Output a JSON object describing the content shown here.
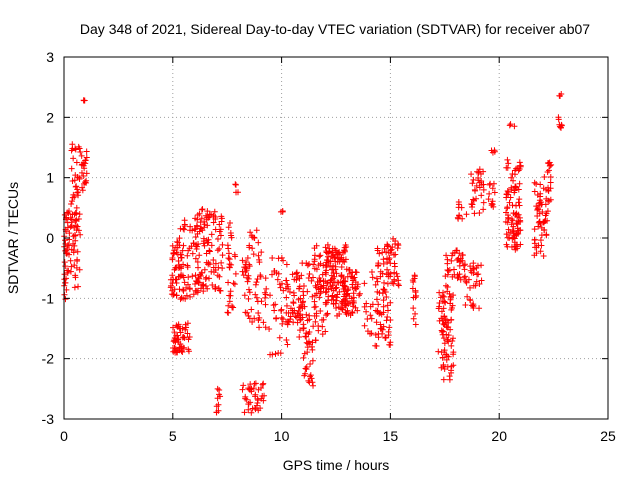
{
  "chart_data": {
    "type": "scatter",
    "title": "Day 348 of 2021, Sidereal Day-to-day VTEC variation (SDTVAR) for receiver ab07",
    "xlabel": "GPS time / hours",
    "ylabel": "SDTVAR / TECUs",
    "xlim": [
      0,
      25
    ],
    "ylim": [
      -3,
      3
    ],
    "xticks": [
      0,
      5,
      10,
      15,
      20,
      25
    ],
    "yticks": [
      -3,
      -2,
      -1,
      0,
      1,
      2,
      3
    ],
    "xtick_labels": [
      "0",
      "5",
      "10",
      "15",
      "20",
      "25"
    ],
    "ytick_labels": [
      "-3",
      "-2",
      "-1",
      "0",
      "1",
      "2",
      "3"
    ],
    "grid": true,
    "marker": "+",
    "color": "#ff0000",
    "clusters": [
      {
        "x0": 0.0,
        "x1": 0.25,
        "y0": -1.05,
        "y1": 0.45,
        "n": 40
      },
      {
        "x0": 0.3,
        "x1": 0.75,
        "y0": -1.05,
        "y1": 1.6,
        "n": 70
      },
      {
        "x0": 0.8,
        "x1": 1.05,
        "y0": 0.75,
        "y1": 1.45,
        "n": 20
      },
      {
        "x0": 0.9,
        "x1": 1.05,
        "y0": 2.2,
        "y1": 2.3,
        "n": 3
      },
      {
        "x0": 4.9,
        "x1": 5.4,
        "y0": -1.0,
        "y1": 0.2,
        "n": 45
      },
      {
        "x0": 5.0,
        "x1": 5.8,
        "y0": -1.9,
        "y1": -1.4,
        "n": 50
      },
      {
        "x0": 5.3,
        "x1": 6.2,
        "y0": -1.05,
        "y1": 0.3,
        "n": 60
      },
      {
        "x0": 6.0,
        "x1": 6.6,
        "y0": -0.9,
        "y1": 0.5,
        "n": 55
      },
      {
        "x0": 6.6,
        "x1": 7.3,
        "y0": -0.9,
        "y1": 0.45,
        "n": 50
      },
      {
        "x0": 7.0,
        "x1": 7.2,
        "y0": -2.9,
        "y1": -2.4,
        "n": 10
      },
      {
        "x0": 7.5,
        "x1": 7.9,
        "y0": -1.3,
        "y1": 0.3,
        "n": 30
      },
      {
        "x0": 7.8,
        "x1": 8.0,
        "y0": 0.75,
        "y1": 0.95,
        "n": 4
      },
      {
        "x0": 8.2,
        "x1": 8.5,
        "y0": -1.3,
        "y1": -0.3,
        "n": 20
      },
      {
        "x0": 8.2,
        "x1": 9.2,
        "y0": -2.9,
        "y1": -2.4,
        "n": 40
      },
      {
        "x0": 8.5,
        "x1": 9.3,
        "y0": -1.5,
        "y1": 0.2,
        "n": 45
      },
      {
        "x0": 9.4,
        "x1": 10.3,
        "y0": -1.95,
        "y1": -0.3,
        "n": 40
      },
      {
        "x0": 9.9,
        "x1": 10.1,
        "y0": 0.35,
        "y1": 0.45,
        "n": 3
      },
      {
        "x0": 10.2,
        "x1": 10.9,
        "y0": -1.5,
        "y1": -0.55,
        "n": 40
      },
      {
        "x0": 10.8,
        "x1": 11.6,
        "y0": -1.7,
        "y1": -0.3,
        "n": 50
      },
      {
        "x0": 11.0,
        "x1": 11.5,
        "y0": -2.5,
        "y1": -1.7,
        "n": 25
      },
      {
        "x0": 11.5,
        "x1": 12.2,
        "y0": -1.6,
        "y1": -0.1,
        "n": 55
      },
      {
        "x0": 12.0,
        "x1": 13.0,
        "y0": -1.3,
        "y1": -0.1,
        "n": 120
      },
      {
        "x0": 12.8,
        "x1": 13.6,
        "y0": -1.3,
        "y1": -0.5,
        "n": 60
      },
      {
        "x0": 13.8,
        "x1": 14.2,
        "y0": -1.6,
        "y1": -0.3,
        "n": 15
      },
      {
        "x0": 14.3,
        "x1": 15.0,
        "y0": -1.8,
        "y1": -0.1,
        "n": 80
      },
      {
        "x0": 15.0,
        "x1": 15.4,
        "y0": -0.8,
        "y1": 0.0,
        "n": 25
      },
      {
        "x0": 16.0,
        "x1": 16.2,
        "y0": -1.5,
        "y1": -0.6,
        "n": 15
      },
      {
        "x0": 17.2,
        "x1": 17.9,
        "y0": -2.35,
        "y1": -0.7,
        "n": 80
      },
      {
        "x0": 17.5,
        "x1": 18.0,
        "y0": -0.7,
        "y1": -0.2,
        "n": 15
      },
      {
        "x0": 18.0,
        "x1": 18.4,
        "y0": -0.7,
        "y1": -0.15,
        "n": 20
      },
      {
        "x0": 18.1,
        "x1": 18.5,
        "y0": 0.3,
        "y1": 0.6,
        "n": 10
      },
      {
        "x0": 18.4,
        "x1": 19.2,
        "y0": -1.2,
        "y1": -0.4,
        "n": 35
      },
      {
        "x0": 18.7,
        "x1": 19.3,
        "y0": 0.4,
        "y1": 1.15,
        "n": 30
      },
      {
        "x0": 19.5,
        "x1": 19.8,
        "y0": 0.5,
        "y1": 0.9,
        "n": 12
      },
      {
        "x0": 19.6,
        "x1": 19.9,
        "y0": 1.4,
        "y1": 1.5,
        "n": 4
      },
      {
        "x0": 20.3,
        "x1": 21.0,
        "y0": -0.15,
        "y1": 1.3,
        "n": 70
      },
      {
        "x0": 20.4,
        "x1": 20.7,
        "y0": 1.85,
        "y1": 1.9,
        "n": 3
      },
      {
        "x0": 20.6,
        "x1": 21.0,
        "y0": -0.2,
        "y1": 0.6,
        "n": 25
      },
      {
        "x0": 21.6,
        "x1": 22.3,
        "y0": -0.3,
        "y1": 1.1,
        "n": 60
      },
      {
        "x0": 22.2,
        "x1": 22.4,
        "y0": 0.2,
        "y1": 1.3,
        "n": 15
      },
      {
        "x0": 22.7,
        "x1": 22.9,
        "y0": 1.8,
        "y1": 2.05,
        "n": 8
      },
      {
        "x0": 22.75,
        "x1": 22.9,
        "y0": 2.35,
        "y1": 2.4,
        "n": 3
      }
    ]
  }
}
